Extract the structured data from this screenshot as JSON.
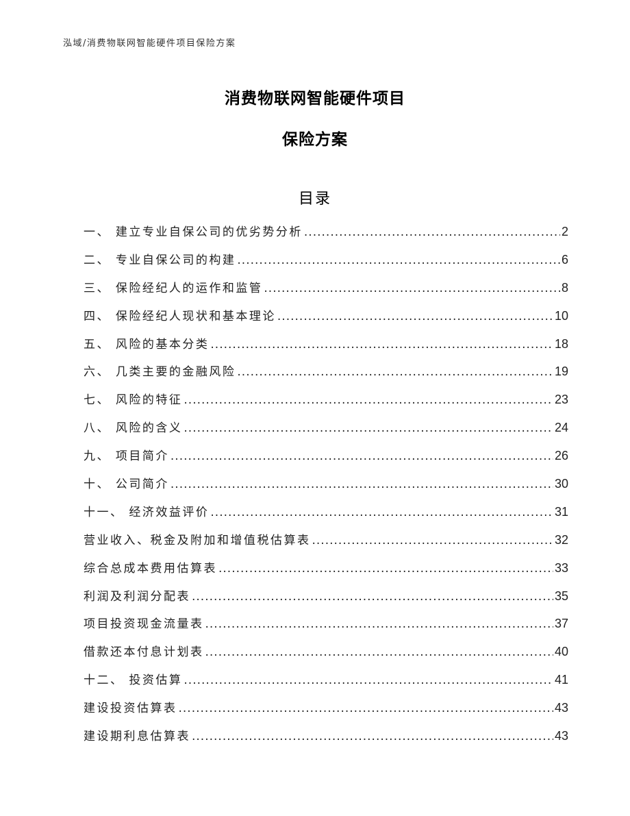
{
  "header": "泓域/消费物联网智能硬件项目保险方案",
  "title_line1": "消费物联网智能硬件项目",
  "title_line2": "保险方案",
  "toc_title": "目录",
  "toc": [
    {
      "label": "一、 建立专业自保公司的优劣势分析",
      "page": "2"
    },
    {
      "label": "二、 专业自保公司的构建",
      "page": "6"
    },
    {
      "label": "三、 保险经纪人的运作和监管",
      "page": "8"
    },
    {
      "label": "四、 保险经纪人现状和基本理论",
      "page": "10"
    },
    {
      "label": "五、 风险的基本分类",
      "page": "18"
    },
    {
      "label": "六、 几类主要的金融风险",
      "page": "19"
    },
    {
      "label": "七、 风险的特征",
      "page": "23"
    },
    {
      "label": "八、 风险的含义",
      "page": "24"
    },
    {
      "label": "九、 项目简介",
      "page": "26"
    },
    {
      "label": "十、 公司简介",
      "page": "30"
    },
    {
      "label": "十一、 经济效益评价",
      "page": "31"
    },
    {
      "label": "营业收入、税金及附加和增值税估算表",
      "page": "32"
    },
    {
      "label": "综合总成本费用估算表",
      "page": "33"
    },
    {
      "label": "利润及利润分配表",
      "page": "35"
    },
    {
      "label": "项目投资现金流量表",
      "page": "37"
    },
    {
      "label": "借款还本付息计划表",
      "page": "40"
    },
    {
      "label": "十二、 投资估算",
      "page": "41"
    },
    {
      "label": "建设投资估算表",
      "page": "43"
    },
    {
      "label": "建设期利息估算表",
      "page": "43"
    }
  ]
}
